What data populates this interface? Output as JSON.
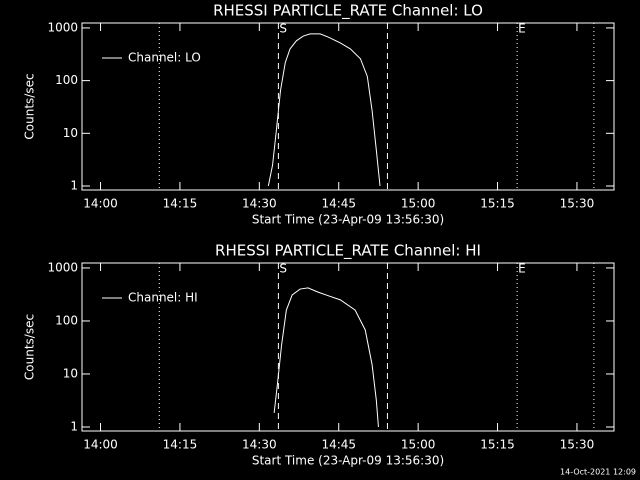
{
  "chart_data": [
    {
      "type": "line",
      "title": "RHESSI PARTICLE_RATE Channel: LO",
      "xlabel": "Start Time (23-Apr-09 13:56:30)",
      "ylabel": "Counts/sec",
      "yscale": "log",
      "legend": "upper left",
      "xlim": [
        -3.5,
        97
      ],
      "ylim": [
        0.84,
        1240
      ],
      "xticks": [
        {
          "value": 0,
          "label": "14:00"
        },
        {
          "value": 15,
          "label": "14:15"
        },
        {
          "value": 30,
          "label": "14:30"
        },
        {
          "value": 45,
          "label": "14:45"
        },
        {
          "value": 60,
          "label": "15:00"
        },
        {
          "value": 75,
          "label": "15:15"
        },
        {
          "value": 90,
          "label": "15:30"
        }
      ],
      "yticks": [
        1,
        10,
        100,
        1000
      ],
      "markers": [
        {
          "x": 11.1,
          "style": "dotted"
        },
        {
          "x": 33.6,
          "style": "dashed",
          "label": "S"
        },
        {
          "x": 54.2,
          "style": "dashed"
        },
        {
          "x": 78.7,
          "style": "dotted",
          "label": "E"
        },
        {
          "x": 93.2,
          "style": "dotted"
        }
      ],
      "series": [
        {
          "name": "Channel: LO",
          "color": "#ffffff",
          "x": [
            31.7,
            32.5,
            33.2,
            34.0,
            34.9,
            35.8,
            37.0,
            38.3,
            39.6,
            41.5,
            43.0,
            45.3,
            47.2,
            49.1,
            50.4,
            51.3,
            52.1,
            52.8
          ],
          "values": [
            1,
            2.5,
            11,
            65,
            220,
            400,
            570,
            700,
            770,
            770,
            670,
            520,
            400,
            260,
            120,
            27,
            4.8,
            1
          ]
        }
      ]
    },
    {
      "type": "line",
      "title": "RHESSI PARTICLE_RATE Channel: HI",
      "xlabel": "Start Time (23-Apr-09 13:56:30)",
      "ylabel": "Counts/sec",
      "yscale": "log",
      "legend": "upper left",
      "xlim": [
        -3.5,
        97
      ],
      "ylim": [
        0.84,
        1240
      ],
      "xticks": [
        {
          "value": 0,
          "label": "14:00"
        },
        {
          "value": 15,
          "label": "14:15"
        },
        {
          "value": 30,
          "label": "14:30"
        },
        {
          "value": 45,
          "label": "14:45"
        },
        {
          "value": 60,
          "label": "15:00"
        },
        {
          "value": 75,
          "label": "15:15"
        },
        {
          "value": 90,
          "label": "15:30"
        }
      ],
      "yticks": [
        1,
        10,
        100,
        1000
      ],
      "markers": [
        {
          "x": 11.1,
          "style": "dotted"
        },
        {
          "x": 33.6,
          "style": "dashed",
          "label": "S"
        },
        {
          "x": 54.2,
          "style": "dashed"
        },
        {
          "x": 78.7,
          "style": "dotted",
          "label": "E"
        },
        {
          "x": 93.2,
          "style": "dotted"
        }
      ],
      "series": [
        {
          "name": "Channel: HI",
          "color": "#ffffff",
          "x": [
            32.8,
            33.4,
            34.2,
            35.1,
            36.2,
            37.7,
            39.2,
            41.1,
            43.0,
            45.3,
            48.1,
            50.0,
            51.3,
            52.1,
            52.5
          ],
          "values": [
            1.84,
            6.2,
            35,
            160,
            310,
            400,
            420,
            350,
            300,
            250,
            160,
            68,
            15,
            3.2,
            1
          ]
        }
      ]
    }
  ],
  "footer": "14-Oct-2021 12:09"
}
